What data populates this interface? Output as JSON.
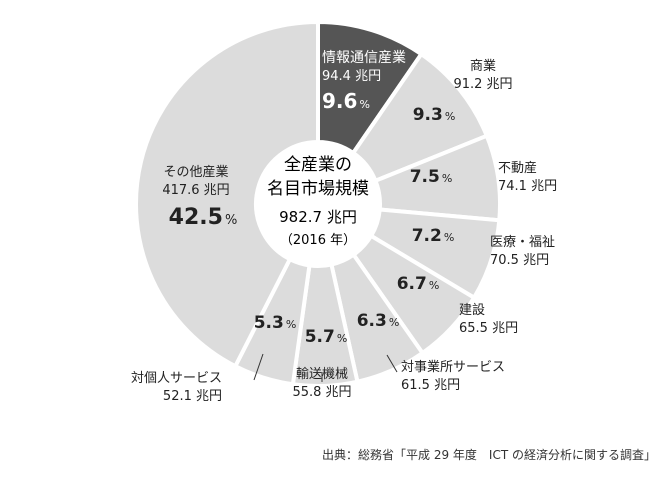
{
  "chart_data": {
    "type": "pie",
    "style": "donut",
    "center": {
      "title_line1": "全産業の",
      "title_line2": "名目市場規模",
      "total": "982.7 兆円",
      "year": "（2016 年）"
    },
    "unit": "兆円",
    "slices": [
      {
        "name": "情報通信産業",
        "value": 94.4,
        "value_label": "94.4 兆円",
        "percent_label": "9.6",
        "highlight": true
      },
      {
        "name": "商業",
        "value": 91.2,
        "value_label": "91.2 兆円",
        "percent_label": "9.3",
        "highlight": false
      },
      {
        "name": "不動産",
        "value": 74.1,
        "value_label": "74.1 兆円",
        "percent_label": "7.5",
        "highlight": false
      },
      {
        "name": "医療・福祉",
        "value": 70.5,
        "value_label": "70.5 兆円",
        "percent_label": "7.2",
        "highlight": false
      },
      {
        "name": "建設",
        "value": 65.5,
        "value_label": "65.5 兆円",
        "percent_label": "6.7",
        "highlight": false
      },
      {
        "name": "対事業所サービス",
        "value": 61.5,
        "value_label": "61.5 兆円",
        "percent_label": "6.3",
        "highlight": false
      },
      {
        "name": "輸送機械",
        "value": 55.8,
        "value_label": "55.8 兆円",
        "percent_label": "5.7",
        "highlight": false
      },
      {
        "name": "対個人サービス",
        "value": 52.1,
        "value_label": "52.1 兆円",
        "percent_label": "5.3",
        "highlight": false
      },
      {
        "name": "その他産業",
        "value": 417.6,
        "value_label": "417.6 兆円",
        "percent_label": "42.5",
        "highlight": false
      }
    ],
    "percent_suffix": "%",
    "colors": {
      "highlight": "#555555",
      "normal": "#dcdcdc",
      "border": "#ffffff",
      "highlight_text": "#ffffff",
      "text": "#222222"
    }
  },
  "source": "出典：総務省「平成 29 年度　ICT の経済分析に関する調査」"
}
